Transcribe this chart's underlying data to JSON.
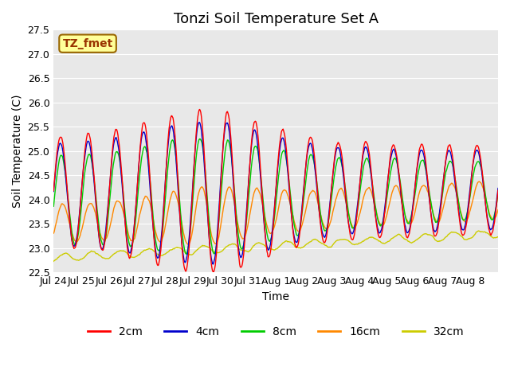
{
  "title": "Tonzi Soil Temperature Set A",
  "xlabel": "Time",
  "ylabel": "Soil Temperature (C)",
  "ylim": [
    22.5,
    27.5
  ],
  "yticks": [
    22.5,
    23.0,
    23.5,
    24.0,
    24.5,
    25.0,
    25.5,
    26.0,
    26.5,
    27.0,
    27.5
  ],
  "xtick_labels": [
    "Jul 24",
    "Jul 25",
    "Jul 26",
    "Jul 27",
    "Jul 28",
    "Jul 29",
    "Jul 30",
    "Jul 31",
    "Aug 1",
    "Aug 2",
    "Aug 3",
    "Aug 4",
    "Aug 5",
    "Aug 6",
    "Aug 7",
    "Aug 8"
  ],
  "line_colors": {
    "2cm": "#ff0000",
    "4cm": "#0000cc",
    "8cm": "#00cc00",
    "16cm": "#ff8800",
    "32cm": "#cccc00"
  },
  "legend_labels": [
    "2cm",
    "4cm",
    "8cm",
    "16cm",
    "32cm"
  ],
  "annotation_text": "TZ_fmet",
  "annotation_bg": "#ffff99",
  "annotation_border": "#996600",
  "annotation_text_color": "#993300",
  "n_days": 16,
  "pts_per_day": 48,
  "title_fontsize": 13,
  "label_fontsize": 10,
  "tick_fontsize": 9
}
